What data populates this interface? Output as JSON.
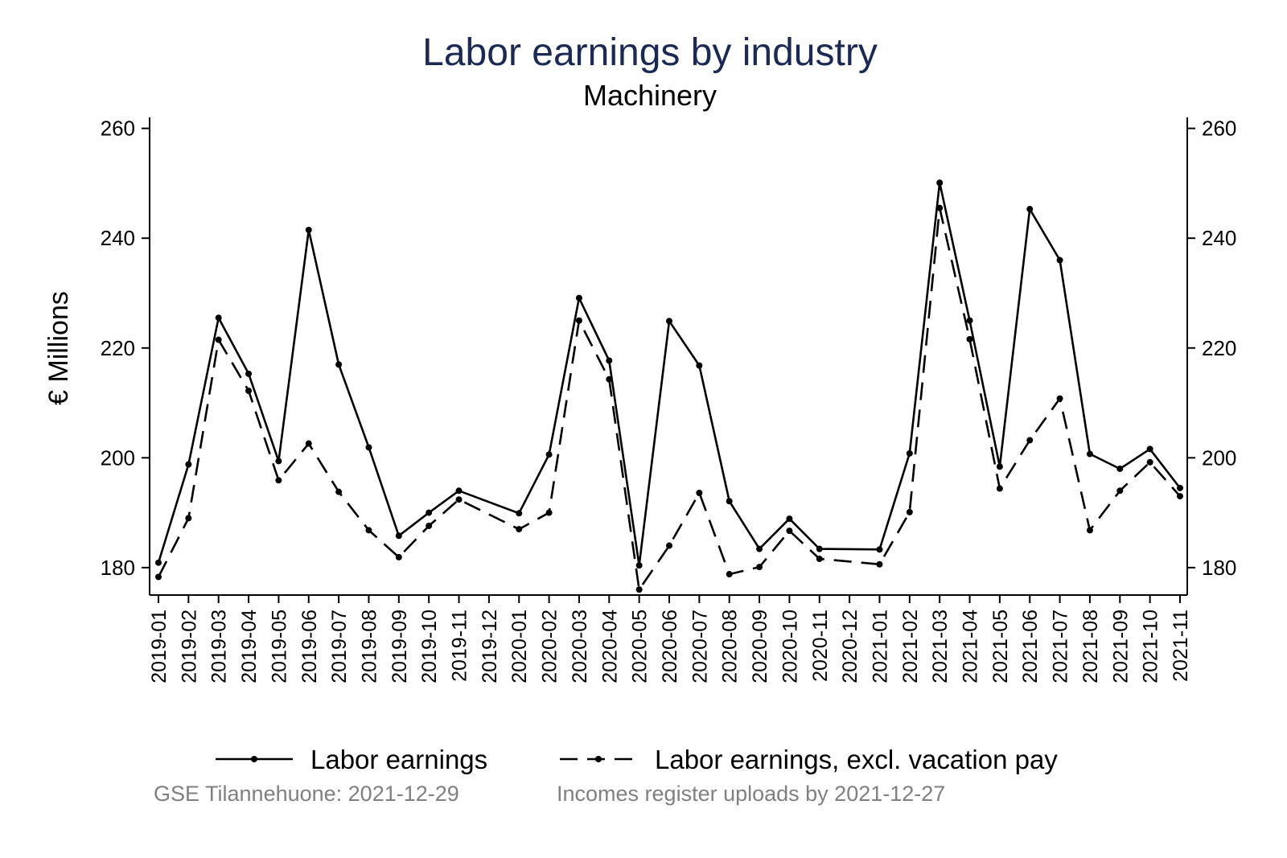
{
  "chart_data": {
    "type": "line",
    "title": "Labor earnings by industry",
    "subtitle": "Machinery",
    "xlabel": "",
    "ylabel": "€ Millions",
    "ylim": [
      175,
      262
    ],
    "yticks": [
      180,
      200,
      220,
      240,
      260
    ],
    "categories": [
      "2019-01",
      "2019-02",
      "2019-03",
      "2019-04",
      "2019-05",
      "2019-06",
      "2019-07",
      "2019-08",
      "2019-09",
      "2019-10",
      "2019-11",
      "2019-12",
      "2020-01",
      "2020-02",
      "2020-03",
      "2020-04",
      "2020-05",
      "2020-06",
      "2020-07",
      "2020-08",
      "2020-09",
      "2020-10",
      "2020-11",
      "2020-12",
      "2021-01",
      "2021-02",
      "2021-03",
      "2021-04",
      "2021-05",
      "2021-06",
      "2021-07",
      "2021-08",
      "2021-09",
      "2021-10",
      "2021-11"
    ],
    "series": [
      {
        "name": "Labor earnings",
        "style": "solid",
        "values": [
          180.9,
          198.8,
          225.5,
          215.3,
          199.4,
          241.5,
          217.0,
          201.9,
          185.8,
          190.0,
          194.0,
          null,
          189.9,
          200.6,
          229.1,
          217.7,
          180.4,
          224.9,
          216.8,
          192.1,
          183.4,
          188.9,
          183.4,
          null,
          183.3,
          200.8,
          250.1,
          225.0,
          198.4,
          245.3,
          236.0,
          200.7,
          198.0,
          201.6,
          194.5
        ]
      },
      {
        "name": "Labor earnings, excl. vacation pay",
        "style": "dashed",
        "values": [
          178.3,
          189.0,
          221.5,
          212.2,
          195.9,
          202.6,
          193.8,
          186.8,
          181.9,
          187.6,
          192.4,
          null,
          187.0,
          190.0,
          225.0,
          214.3,
          176.0,
          184.0,
          193.6,
          178.8,
          180.1,
          186.7,
          181.6,
          null,
          180.6,
          190.1,
          245.5,
          221.6,
          194.4,
          203.2,
          210.8,
          186.8,
          194.0,
          199.2,
          193.0
        ]
      }
    ],
    "legend": "bottom",
    "grid": false,
    "line_color": "#000000",
    "title_color": "#1a2a55",
    "note_color": "#808080"
  },
  "notes": {
    "left": "GSE Tilannehuone: 2021-12-29",
    "right": "Incomes register uploads by 2021-12-27"
  }
}
